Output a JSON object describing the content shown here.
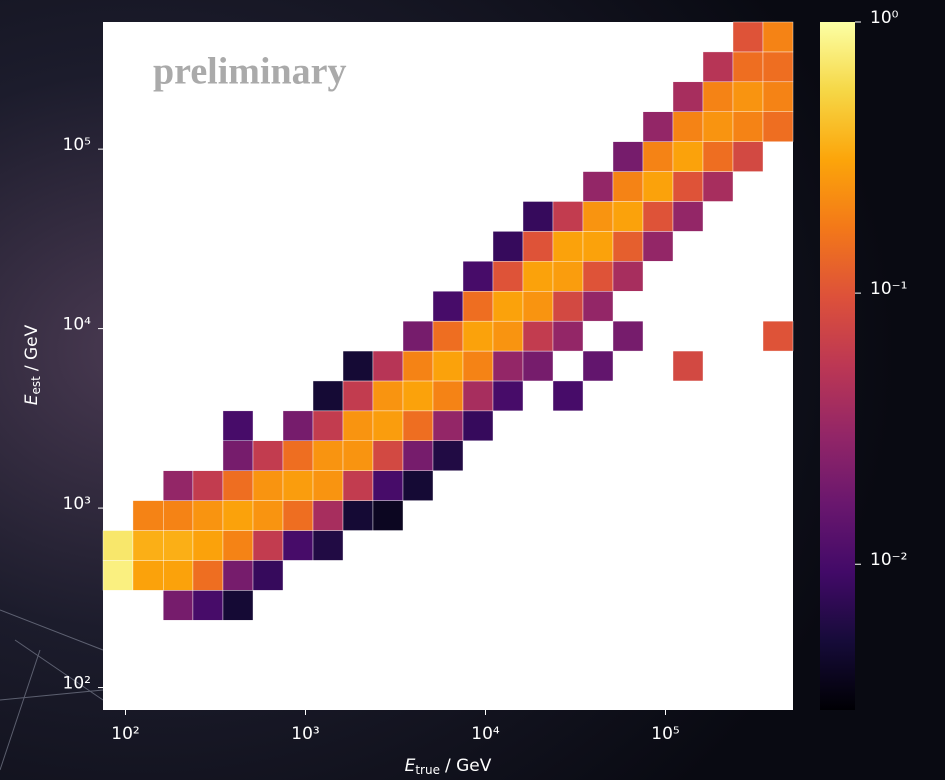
{
  "chart_data": {
    "type": "heatmap",
    "annotation": "preliminary",
    "xlabel": {
      "symbol": "E",
      "subscript": "true",
      "unit": "/ GeV"
    },
    "ylabel": {
      "symbol": "E",
      "subscript": "est",
      "unit": "/ GeV"
    },
    "xscale": "log",
    "yscale": "log",
    "colormap": "inferno",
    "cscale": "log",
    "xlim": [
      75,
      510897
    ],
    "ylim": [
      75,
      510897
    ],
    "xticks": [
      {
        "value": 100,
        "label": "10²"
      },
      {
        "value": 1000,
        "label": "10³"
      },
      {
        "value": 10000,
        "label": "10⁴"
      },
      {
        "value": 100000,
        "label": "10⁵"
      }
    ],
    "yticks": [
      {
        "value": 100,
        "label": "10²"
      },
      {
        "value": 1000,
        "label": "10³"
      },
      {
        "value": 10000,
        "label": "10⁴"
      },
      {
        "value": 100000,
        "label": "10⁵"
      }
    ],
    "clim": [
      0.0029,
      1
    ],
    "cticks": [
      {
        "value": 1,
        "label": "10⁰"
      },
      {
        "value": 0.1,
        "label": "10⁻¹"
      },
      {
        "value": 0.01,
        "label": "10⁻²"
      }
    ],
    "xbins": [
      75,
      110,
      162,
      237,
      348,
      511,
      750,
      1101,
      1616,
      2371,
      3481,
      5109,
      7499,
      11007,
      16156,
      23714,
      34807,
      51090,
      74989,
      110069,
      161560,
      237137,
      348070,
      510897
    ],
    "ybins": [
      75,
      110,
      162,
      237,
      348,
      511,
      750,
      1101,
      1616,
      2371,
      3481,
      5109,
      7499,
      11007,
      16156,
      23714,
      34807,
      51090,
      74989,
      110069,
      161560,
      237137,
      348070,
      510897
    ],
    "values": [
      [
        null,
        null,
        null,
        null,
        null,
        null,
        null,
        null,
        null,
        null,
        null,
        null,
        null,
        null,
        null,
        null,
        null,
        null,
        null,
        null,
        null,
        null,
        null
      ],
      [
        null,
        null,
        null,
        null,
        null,
        null,
        null,
        null,
        null,
        null,
        null,
        null,
        null,
        null,
        null,
        null,
        null,
        null,
        null,
        null,
        null,
        null,
        null
      ],
      [
        null,
        null,
        null,
        null,
        null,
        null,
        null,
        null,
        null,
        null,
        null,
        null,
        null,
        null,
        null,
        null,
        null,
        null,
        null,
        null,
        null,
        null,
        null
      ],
      [
        null,
        null,
        0.02,
        0.01,
        0.005,
        null,
        null,
        null,
        null,
        null,
        null,
        null,
        null,
        null,
        null,
        null,
        null,
        null,
        null,
        null,
        null,
        null,
        null
      ],
      [
        0.8,
        0.3,
        0.3,
        0.15,
        0.02,
        0.008,
        null,
        null,
        null,
        null,
        null,
        null,
        null,
        null,
        null,
        null,
        null,
        null,
        null,
        null,
        null,
        null,
        null
      ],
      [
        0.7,
        0.35,
        0.35,
        0.3,
        0.2,
        0.06,
        0.01,
        0.006,
        null,
        null,
        null,
        null,
        null,
        null,
        null,
        null,
        null,
        null,
        null,
        null,
        null,
        null,
        null
      ],
      [
        null,
        0.2,
        0.2,
        0.25,
        0.3,
        0.25,
        0.15,
        0.04,
        0.005,
        0.004,
        null,
        null,
        null,
        null,
        null,
        null,
        null,
        null,
        null,
        null,
        null,
        null,
        null
      ],
      [
        null,
        null,
        0.03,
        0.06,
        0.15,
        0.25,
        0.28,
        0.25,
        0.06,
        0.01,
        0.005,
        null,
        null,
        null,
        null,
        null,
        null,
        null,
        null,
        null,
        null,
        null,
        null
      ],
      [
        null,
        null,
        null,
        null,
        0.02,
        0.06,
        0.15,
        0.25,
        0.25,
        0.08,
        0.02,
        0.006,
        null,
        null,
        null,
        null,
        null,
        null,
        null,
        null,
        null,
        null,
        null
      ],
      [
        null,
        null,
        null,
        null,
        0.01,
        null,
        0.02,
        0.06,
        0.25,
        0.28,
        0.15,
        0.03,
        0.008,
        null,
        null,
        null,
        null,
        null,
        null,
        null,
        null,
        null,
        null
      ],
      [
        null,
        null,
        null,
        null,
        null,
        null,
        null,
        0.005,
        0.06,
        0.25,
        0.3,
        0.2,
        0.04,
        0.01,
        null,
        0.01,
        null,
        null,
        null,
        null,
        null,
        null,
        null
      ],
      [
        null,
        null,
        null,
        null,
        null,
        null,
        null,
        null,
        0.005,
        0.05,
        0.2,
        0.3,
        0.2,
        0.03,
        0.02,
        null,
        0.015,
        null,
        null,
        0.08,
        null,
        null,
        null
      ],
      [
        null,
        null,
        null,
        null,
        null,
        null,
        null,
        null,
        null,
        null,
        0.02,
        0.15,
        0.3,
        0.25,
        0.06,
        0.03,
        null,
        0.02,
        null,
        null,
        null,
        null,
        0.1
      ],
      [
        null,
        null,
        null,
        null,
        null,
        null,
        null,
        null,
        null,
        null,
        null,
        0.01,
        0.15,
        0.3,
        0.25,
        0.08,
        0.03,
        null,
        null,
        null,
        null,
        null,
        null
      ],
      [
        null,
        null,
        null,
        null,
        null,
        null,
        null,
        null,
        null,
        null,
        null,
        null,
        0.01,
        0.1,
        0.3,
        0.28,
        0.1,
        0.04,
        null,
        null,
        null,
        null,
        null
      ],
      [
        null,
        null,
        null,
        null,
        null,
        null,
        null,
        null,
        null,
        null,
        null,
        null,
        null,
        0.008,
        0.1,
        0.3,
        0.3,
        0.12,
        0.03,
        null,
        null,
        null,
        null
      ],
      [
        null,
        null,
        null,
        null,
        null,
        null,
        null,
        null,
        null,
        null,
        null,
        null,
        null,
        null,
        0.008,
        0.06,
        0.25,
        0.3,
        0.1,
        0.03,
        null,
        null,
        null
      ],
      [
        null,
        null,
        null,
        null,
        null,
        null,
        null,
        null,
        null,
        null,
        null,
        null,
        null,
        null,
        null,
        null,
        0.03,
        0.2,
        0.3,
        0.1,
        0.04,
        null,
        null
      ],
      [
        null,
        null,
        null,
        null,
        null,
        null,
        null,
        null,
        null,
        null,
        null,
        null,
        null,
        null,
        null,
        null,
        null,
        0.02,
        0.2,
        0.3,
        0.15,
        0.08,
        null
      ],
      [
        null,
        null,
        null,
        null,
        null,
        null,
        null,
        null,
        null,
        null,
        null,
        null,
        null,
        null,
        null,
        null,
        null,
        null,
        0.03,
        0.2,
        0.25,
        0.2,
        0.15
      ],
      [
        null,
        null,
        null,
        null,
        null,
        null,
        null,
        null,
        null,
        null,
        null,
        null,
        null,
        null,
        null,
        null,
        null,
        null,
        null,
        0.04,
        0.2,
        0.25,
        0.2
      ],
      [
        null,
        null,
        null,
        null,
        null,
        null,
        null,
        null,
        null,
        null,
        null,
        null,
        null,
        null,
        null,
        null,
        null,
        null,
        null,
        null,
        0.05,
        0.15,
        0.15
      ],
      [
        null,
        null,
        null,
        null,
        null,
        null,
        null,
        null,
        null,
        null,
        null,
        null,
        null,
        null,
        null,
        null,
        null,
        null,
        null,
        null,
        null,
        0.1,
        0.2
      ]
    ]
  }
}
